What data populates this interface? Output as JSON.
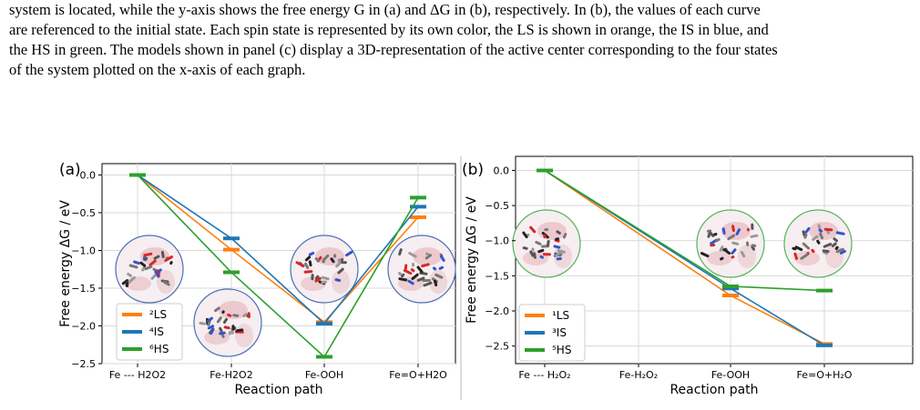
{
  "caption": {
    "lines": [
      "system is located, while the y-axis shows the free energy G in (a) and ΔG in (b), respectively. In (b), the values of each curve",
      "are referenced to the initial state. Each spin state is represented by its own color, the LS is shown in orange, the IS in blue, and",
      "the HS in green. The models shown in panel (c) display a 3D-representation of the active center corresponding to the four states",
      "of the system plotted on the x-axis of each graph."
    ]
  },
  "colors": {
    "ls": "#ff7f0e",
    "is": "#1f77b4",
    "hs": "#2ca02c"
  },
  "chart_data": [
    {
      "panel_label": "(a)",
      "type": "line",
      "xlabel": "Reaction path",
      "ylabel": "Free energy ΔG / eV",
      "categories": [
        "Fe --- H2O2",
        "Fe-H2O2",
        "Fe-OOH",
        "Fe=O+H2O"
      ],
      "ylim": [
        -2.5,
        0.15
      ],
      "yticks": [
        "0.0",
        "−0.5",
        "−1.0",
        "−1.5",
        "−2.0",
        "−2.5"
      ],
      "ytick_values": [
        0.0,
        -0.5,
        -1.0,
        -1.5,
        -2.0,
        -2.5
      ],
      "grid": true,
      "legend_position": "lower-left",
      "series": [
        {
          "name": "²LS",
          "key": "ls",
          "values": [
            0.0,
            -0.99,
            -1.95,
            -0.56
          ]
        },
        {
          "name": "⁴IS",
          "key": "is",
          "values": [
            0.0,
            -0.84,
            -1.97,
            -0.42
          ]
        },
        {
          "name": "⁶HS",
          "key": "hs",
          "values": [
            0.0,
            -1.29,
            -2.41,
            -0.3
          ]
        }
      ]
    },
    {
      "panel_label": "(b)",
      "type": "line",
      "xlabel": "Reaction path",
      "ylabel": "Free energy ΔG / eV",
      "categories": [
        "Fe --- H₂O₂",
        "Fe-H₂O₂",
        "Fe-OOH",
        "Fe=O+H₂O"
      ],
      "ylim": [
        -2.75,
        0.2
      ],
      "yticks": [
        "0.0",
        "−0.5",
        "−1.0",
        "−1.5",
        "−2.0",
        "−2.5"
      ],
      "ytick_values": [
        0.0,
        -0.5,
        -1.0,
        -1.5,
        -2.0,
        -2.5
      ],
      "grid": true,
      "legend_position": "lower-left",
      "series": [
        {
          "name": "¹LS",
          "key": "ls",
          "values": [
            0.0,
            null,
            -1.78,
            -2.47
          ]
        },
        {
          "name": "³IS",
          "key": "is",
          "values": [
            0.0,
            null,
            -1.68,
            -2.49
          ]
        },
        {
          "name": "⁵HS",
          "key": "hs",
          "values": [
            0.0,
            null,
            -1.65,
            -1.71
          ]
        }
      ]
    }
  ]
}
